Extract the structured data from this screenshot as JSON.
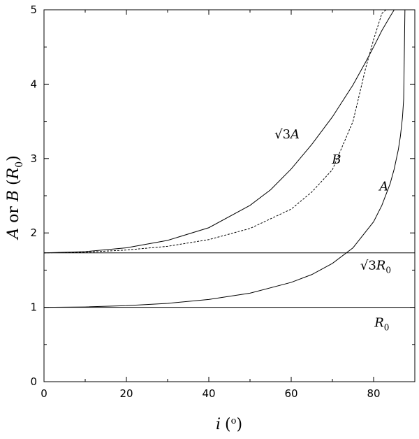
{
  "chart_data": {
    "type": "line",
    "title": "",
    "xlabel": "i (°)",
    "ylabel": "A or B (R0)",
    "xlim": [
      0,
      90
    ],
    "ylim": [
      0,
      5
    ],
    "x_ticks": [
      "0",
      "20",
      "40",
      "60",
      "80"
    ],
    "y_ticks": [
      "0",
      "1",
      "2",
      "3",
      "4",
      "5"
    ],
    "grid": false,
    "legend": "none",
    "series": [
      {
        "name": "A",
        "style": "solid",
        "x": [
          0,
          10,
          20,
          30,
          40,
          50,
          60,
          65,
          70,
          75,
          80,
          82,
          84,
          85,
          86,
          86.5,
          87,
          87.3,
          87.6
        ],
        "y": [
          1.0,
          1.005,
          1.022,
          1.053,
          1.105,
          1.19,
          1.335,
          1.44,
          1.59,
          1.8,
          2.15,
          2.37,
          2.66,
          2.86,
          3.12,
          3.3,
          3.55,
          3.8,
          5.0
        ]
      },
      {
        "name": "B",
        "style": "solid",
        "x": [
          0,
          10,
          20,
          30,
          40,
          50,
          55,
          60,
          65,
          70,
          75,
          78,
          80,
          82,
          84,
          85,
          86,
          87
        ],
        "y": [
          1.732,
          1.748,
          1.8,
          1.9,
          2.07,
          2.37,
          2.58,
          2.86,
          3.19,
          3.56,
          3.99,
          4.29,
          4.5,
          4.72,
          4.91,
          5.0,
          5.0,
          5.0
        ]
      },
      {
        "name": "√3A",
        "style": "dashed",
        "x": [
          0,
          10,
          20,
          30,
          40,
          50,
          55,
          60,
          65,
          70,
          75,
          78,
          80,
          82,
          83
        ],
        "y": [
          1.732,
          1.74,
          1.77,
          1.82,
          1.91,
          2.06,
          2.19,
          2.32,
          2.55,
          2.85,
          3.5,
          4.2,
          4.6,
          4.95,
          5.0
        ]
      },
      {
        "name": "√3R0",
        "style": "solid",
        "x": [
          0,
          90
        ],
        "y": [
          1.732,
          1.732
        ]
      },
      {
        "name": "R0",
        "style": "solid",
        "x": [
          0,
          90
        ],
        "y": [
          1.0,
          1.0
        ]
      }
    ],
    "annotations": [
      {
        "key": "sqrt3A",
        "text": "√3A",
        "x": 59,
        "y": 3.27
      },
      {
        "key": "B",
        "text": "B",
        "x": 71,
        "y": 2.93
      },
      {
        "key": "A",
        "text": "A",
        "x": 82.5,
        "y": 2.57
      },
      {
        "key": "sqrt3R0",
        "text": "√3R0",
        "x": 80.5,
        "y": 1.51
      },
      {
        "key": "R0",
        "text": "R0",
        "x": 82,
        "y": 0.74
      }
    ]
  }
}
